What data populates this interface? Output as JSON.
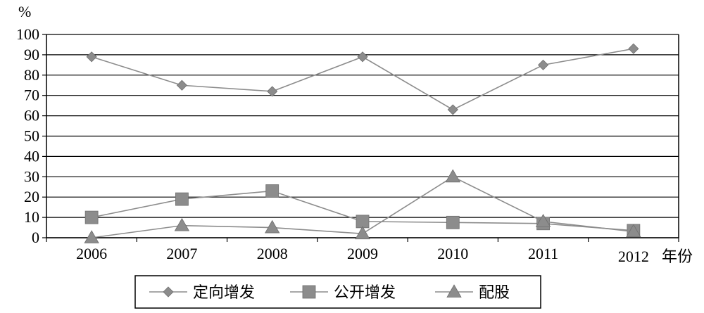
{
  "chart_data": {
    "type": "line",
    "y_unit": "%",
    "x_unit": "年份",
    "categories": [
      "2006",
      "2007",
      "2008",
      "2009",
      "2010",
      "2011",
      "2012"
    ],
    "ylim": [
      0,
      100
    ],
    "yticks": [
      0,
      10,
      20,
      30,
      40,
      50,
      60,
      70,
      80,
      90,
      100
    ],
    "grid": "horizontal",
    "legend_position": "bottom",
    "series": [
      {
        "name": "定向增发",
        "marker": "diamond",
        "values": [
          89,
          75,
          72,
          89,
          63,
          85,
          93
        ]
      },
      {
        "name": "公开增发",
        "marker": "square",
        "values": [
          10,
          19,
          23,
          8,
          7.5,
          7,
          3.5
        ]
      },
      {
        "name": "配股",
        "marker": "triangle",
        "values": [
          0,
          6,
          5,
          2,
          30,
          8,
          3
        ]
      }
    ],
    "colors": {
      "line": "#8c8c8c",
      "marker": "#8c8c8c",
      "grid": "#000000",
      "text": "#000000"
    }
  }
}
